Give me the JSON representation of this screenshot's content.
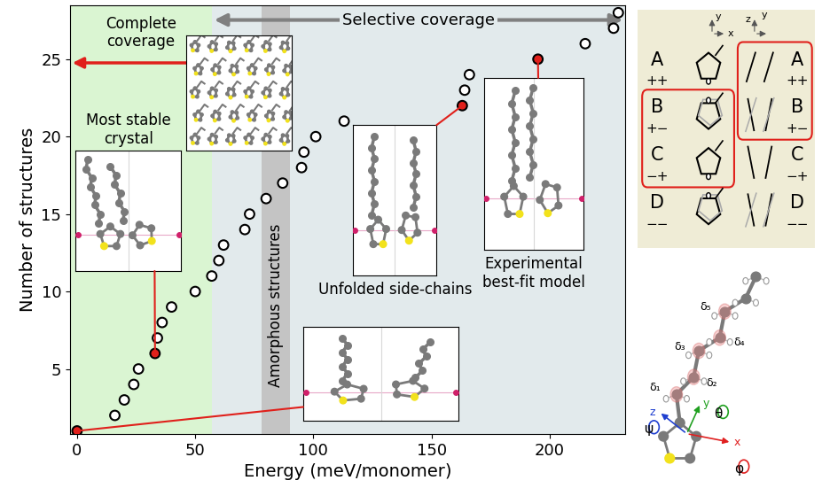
{
  "chart_data": {
    "type": "scatter",
    "x_label": "Energy (meV/monomer)",
    "y_label": "Number of structures",
    "xlim": [
      -3,
      232
    ],
    "ylim": [
      0.8,
      28.5
    ],
    "xticks": [
      0,
      50,
      100,
      150,
      200
    ],
    "yticks": [
      5,
      10,
      15,
      20,
      25
    ],
    "marker": "o",
    "x": [
      0,
      16,
      20,
      24,
      26,
      33,
      34,
      36,
      40,
      50,
      57,
      60,
      62,
      71,
      73,
      80,
      87,
      95,
      96,
      101,
      113,
      163,
      164,
      166,
      195,
      215,
      227,
      229
    ],
    "values": [
      1,
      2,
      3,
      4,
      5,
      6,
      7,
      8,
      9,
      10,
      11,
      12,
      13,
      14,
      15,
      16,
      17,
      18,
      19,
      20,
      21,
      22,
      23,
      24,
      25,
      26,
      27,
      28
    ],
    "colors": [
      "#e0201b",
      "#ffffff",
      "#ffffff",
      "#ffffff",
      "#ffffff",
      "#e0201b",
      "#ffffff",
      "#ffffff",
      "#ffffff",
      "#ffffff",
      "#ffffff",
      "#ffffff",
      "#ffffff",
      "#ffffff",
      "#ffffff",
      "#ffffff",
      "#ffffff",
      "#ffffff",
      "#ffffff",
      "#ffffff",
      "#ffffff",
      "#e0201b",
      "#ffffff",
      "#ffffff",
      "#e0201b",
      "#ffffff",
      "#ffffff",
      "#ffffff"
    ],
    "regions": [
      {
        "label": "Complete\ncoverage",
        "range": [
          -3,
          57
        ],
        "color": "#daf5d2"
      },
      {
        "label": "Selective coverage",
        "range": [
          57,
          232
        ],
        "color": "#e2eaec"
      },
      {
        "label": "Amorphous structures",
        "range": [
          78,
          90
        ],
        "color": "#c4c4c4"
      }
    ],
    "insets": [
      {
        "label": "Most stable\ncrystal",
        "x": 33,
        "y": 6
      },
      {
        "x": 0,
        "y": 1
      },
      {
        "label": "Unfolded side-chains",
        "x": 163,
        "y": 22
      },
      {
        "label": "Experimental\nbest-fit model",
        "x": 195,
        "y": 25
      }
    ],
    "conformations": {
      "axes_left": [
        "y",
        "x"
      ],
      "axes_right": [
        "z",
        "y"
      ],
      "rows": [
        {
          "label": "A",
          "signs": "++"
        },
        {
          "label": "B",
          "signs": "+−"
        },
        {
          "label": "C",
          "signs": "−+"
        },
        {
          "label": "D",
          "signs": "−−"
        }
      ],
      "highlighted_left": [
        "B",
        "C"
      ],
      "highlighted_right": [
        "A",
        "B"
      ]
    },
    "molecule_labels": {
      "side_chain": [
        "δ₁",
        "δ₂",
        "δ₃",
        "δ₄",
        "δ₅"
      ],
      "angles": [
        "ψ",
        "θ",
        "φ"
      ],
      "axes": [
        "x",
        "y",
        "z"
      ]
    }
  }
}
